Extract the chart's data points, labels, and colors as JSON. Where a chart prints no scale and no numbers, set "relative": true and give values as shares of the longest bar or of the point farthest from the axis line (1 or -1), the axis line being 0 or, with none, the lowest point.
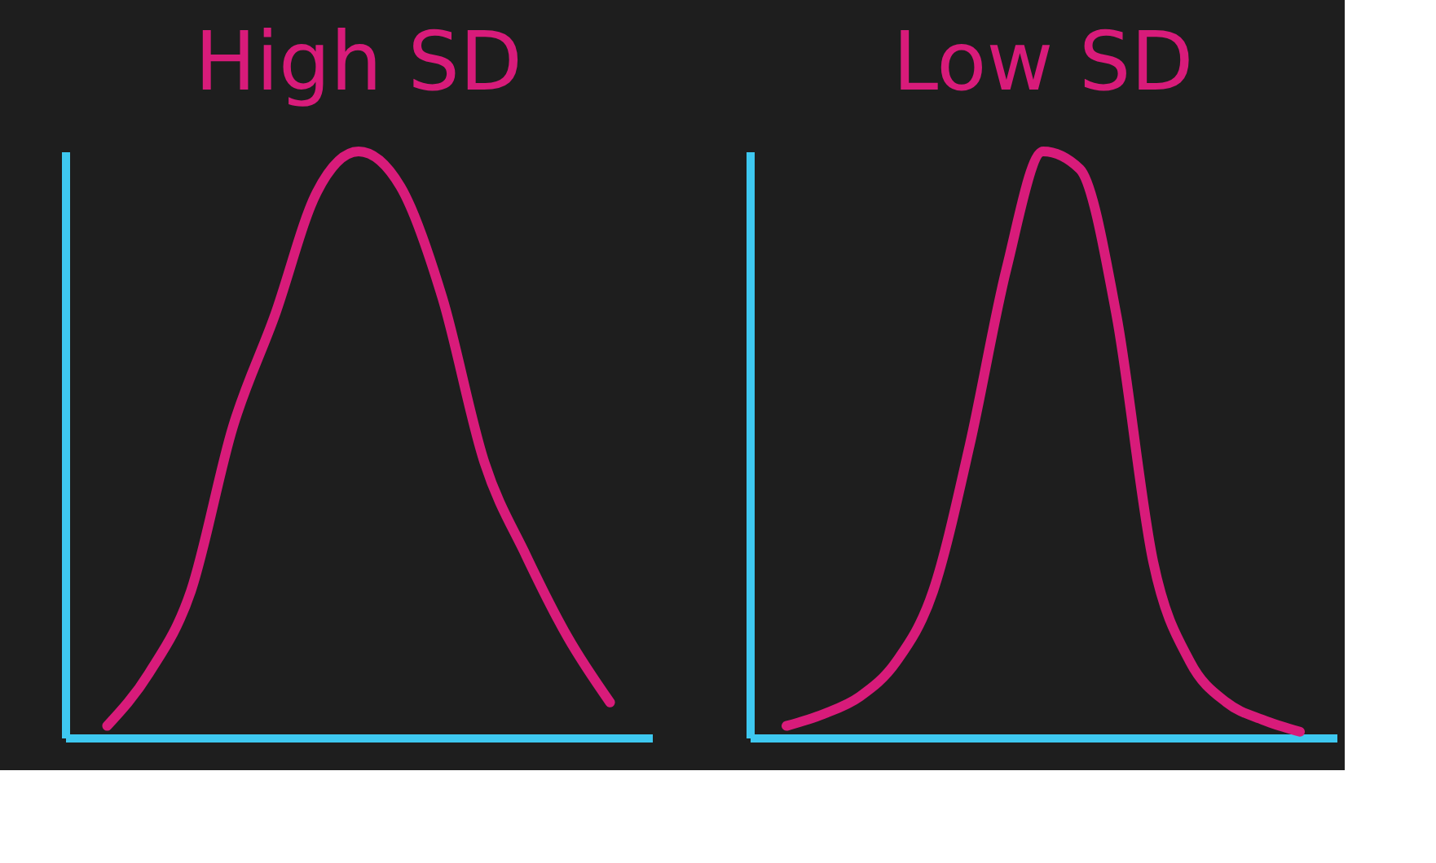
{
  "chart_data": [
    {
      "type": "line",
      "title": "High SD",
      "categories": [
        null,
        null,
        null,
        null,
        null,
        null,
        null,
        null,
        null,
        null,
        null,
        null,
        null
      ],
      "relative": true,
      "tick_labels": false,
      "grid": false,
      "series": [
        {
          "color": "#d81b7a",
          "values": [
            0.02,
            0.11,
            0.25,
            0.53,
            0.72,
            0.93,
            1,
            0.94,
            0.75,
            0.47,
            0.31,
            0.17,
            0.06
          ]
        }
      ]
    },
    {
      "type": "line",
      "title": "Low SD",
      "categories": [
        null,
        null,
        null,
        null,
        null,
        null,
        null,
        null,
        null,
        null,
        null,
        null,
        null,
        null,
        null
      ],
      "relative": true,
      "tick_labels": false,
      "grid": false,
      "series": [
        {
          "color": "#d81b7a",
          "values": [
            0.02,
            0.04,
            0.07,
            0.13,
            0.25,
            0.5,
            0.8,
            1,
            0.97,
            0.72,
            0.3,
            0.13,
            0.06,
            0.03,
            0.01
          ]
        }
      ]
    }
  ]
}
